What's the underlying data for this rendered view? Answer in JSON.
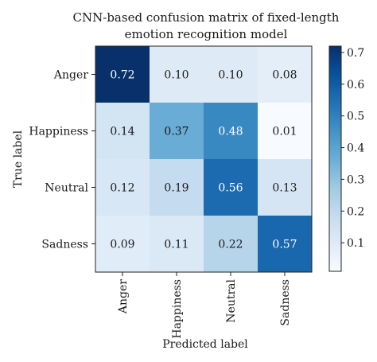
{
  "chart_data": {
    "type": "heatmap",
    "title_lines": [
      "CNN-based confusion matrix of fixed-length",
      "emotion recognition model"
    ],
    "xlabel": "Predicted label",
    "ylabel": "True label",
    "x_categories": [
      "Anger",
      "Happiness",
      "Neutral",
      "Sadness"
    ],
    "y_categories": [
      "Anger",
      "Happiness",
      "Neutral",
      "Sadness"
    ],
    "values": [
      [
        0.72,
        0.1,
        0.1,
        0.08
      ],
      [
        0.14,
        0.37,
        0.48,
        0.01
      ],
      [
        0.12,
        0.19,
        0.56,
        0.13
      ],
      [
        0.09,
        0.11,
        0.22,
        0.57
      ]
    ],
    "value_labels": [
      [
        "0.72",
        "0.10",
        "0.10",
        "0.08"
      ],
      [
        "0.14",
        "0.37",
        "0.48",
        "0.01"
      ],
      [
        "0.12",
        "0.19",
        "0.56",
        "0.13"
      ],
      [
        "0.09",
        "0.11",
        "0.22",
        "0.57"
      ]
    ],
    "colorbar": {
      "range": [
        0.01,
        0.72
      ],
      "ticks": [
        0.1,
        0.2,
        0.3,
        0.4,
        0.5,
        0.6,
        0.7
      ],
      "tick_labels": [
        "0.1",
        "0.2",
        "0.3",
        "0.4",
        "0.5",
        "0.6",
        "0.7"
      ],
      "colormap": "Blues"
    },
    "colors": {
      "text_dark": "#1a1a1a",
      "text_light": "#ffffff",
      "blues_stops": [
        "#f7fbff",
        "#deebf7",
        "#c6dbef",
        "#9ecae1",
        "#6baed6",
        "#4292c6",
        "#2171b5",
        "#08519c",
        "#08306b"
      ]
    }
  }
}
